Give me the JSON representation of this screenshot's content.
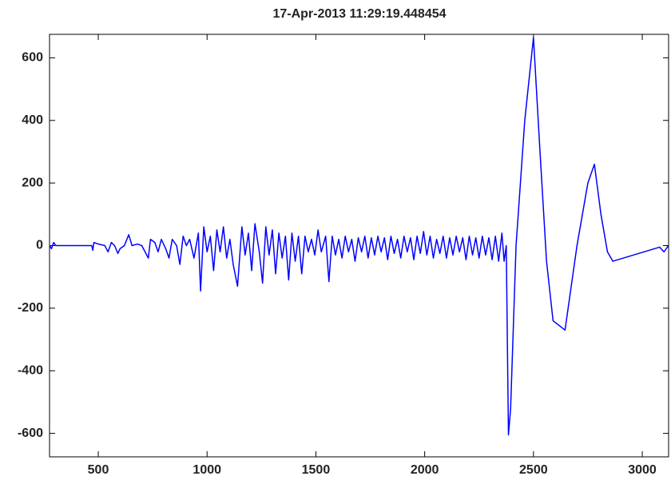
{
  "chart_data": {
    "type": "line",
    "title": "17-Apr-2013 11:29:19.448454",
    "x": [
      276,
      285,
      295,
      305,
      470,
      475,
      480,
      500,
      530,
      545,
      560,
      575,
      590,
      600,
      620,
      640,
      655,
      680,
      700,
      730,
      740,
      760,
      775,
      790,
      810,
      825,
      840,
      860,
      875,
      890,
      905,
      920,
      940,
      960,
      970,
      985,
      1000,
      1015,
      1030,
      1045,
      1060,
      1075,
      1090,
      1105,
      1120,
      1140,
      1160,
      1175,
      1190,
      1205,
      1220,
      1240,
      1255,
      1270,
      1285,
      1300,
      1315,
      1330,
      1345,
      1360,
      1375,
      1390,
      1405,
      1420,
      1435,
      1450,
      1465,
      1480,
      1495,
      1510,
      1525,
      1545,
      1560,
      1575,
      1590,
      1605,
      1620,
      1635,
      1650,
      1665,
      1680,
      1695,
      1710,
      1725,
      1740,
      1755,
      1770,
      1785,
      1800,
      1815,
      1830,
      1845,
      1860,
      1875,
      1890,
      1905,
      1920,
      1935,
      1950,
      1965,
      1980,
      1995,
      2010,
      2025,
      2040,
      2055,
      2070,
      2085,
      2100,
      2115,
      2130,
      2145,
      2160,
      2175,
      2190,
      2205,
      2220,
      2235,
      2250,
      2265,
      2280,
      2295,
      2310,
      2325,
      2340,
      2355,
      2365,
      2375,
      2385,
      2395,
      2420,
      2460,
      2500,
      2530,
      2560,
      2590,
      2645,
      2700,
      2750,
      2780,
      2810,
      2840,
      2865,
      3080,
      3100,
      3120
    ],
    "series": [
      {
        "color": "#0000ff",
        "values": [
          0,
          -10,
          10,
          0,
          0,
          -15,
          10,
          5,
          0,
          -20,
          10,
          0,
          -25,
          -10,
          0,
          35,
          0,
          5,
          0,
          -40,
          20,
          10,
          -20,
          20,
          -10,
          -40,
          20,
          0,
          -60,
          30,
          0,
          20,
          -40,
          40,
          -145,
          60,
          -20,
          30,
          -80,
          50,
          -20,
          60,
          -40,
          20,
          -60,
          -130,
          60,
          -30,
          40,
          -80,
          70,
          -20,
          -120,
          60,
          -30,
          50,
          -90,
          40,
          -40,
          30,
          -110,
          40,
          -50,
          30,
          -90,
          30,
          -20,
          20,
          -30,
          50,
          -20,
          30,
          -115,
          30,
          -30,
          20,
          -40,
          30,
          -20,
          20,
          -50,
          25,
          -20,
          30,
          -40,
          25,
          -30,
          30,
          -20,
          25,
          -45,
          30,
          -25,
          20,
          -40,
          30,
          -20,
          25,
          -45,
          30,
          -25,
          45,
          -30,
          30,
          -40,
          20,
          -25,
          30,
          -40,
          25,
          -30,
          30,
          -20,
          25,
          -45,
          30,
          -30,
          25,
          -40,
          30,
          -30,
          25,
          -45,
          30,
          -50,
          40,
          -50,
          0,
          -605,
          -520,
          0,
          400,
          665,
          300,
          -50,
          -240,
          -270,
          0,
          200,
          260,
          100,
          -20,
          -50,
          -5,
          -20,
          0
        ]
      }
    ],
    "xlim": [
      276,
      3121
    ],
    "ylim": [
      -675,
      675
    ],
    "xticks": [
      500,
      1000,
      1500,
      2000,
      2500,
      3000
    ],
    "yticks": [
      -600,
      -400,
      -200,
      0,
      200,
      400,
      600
    ]
  }
}
